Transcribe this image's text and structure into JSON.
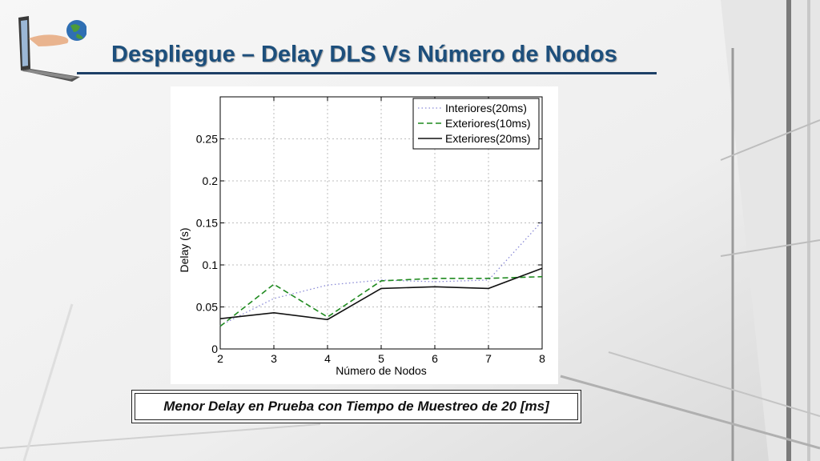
{
  "slide": {
    "title": "Despliegue – Delay DLS Vs Número de Nodos",
    "caption": "Menor Delay en Prueba con Tiempo de Muestreo de 20 [ms]"
  },
  "colors": {
    "title": "#1d4f7c",
    "rule": "#1d3f66",
    "interiores": "#8a8ad6",
    "exteriores10": "#1f8a1f",
    "exteriores20": "#111111"
  },
  "chart_data": {
    "type": "line",
    "title": "",
    "xlabel": "Número de Nodos",
    "ylabel": "Delay (s)",
    "x": [
      2,
      3,
      4,
      5,
      6,
      7,
      8
    ],
    "xlim": [
      2,
      8
    ],
    "ylim": [
      0,
      0.3
    ],
    "xticks": [
      "2",
      "3",
      "4",
      "5",
      "6",
      "7",
      "8"
    ],
    "yticks": [
      {
        "value": 0,
        "label": "0"
      },
      {
        "value": 0.05,
        "label": "0.05"
      },
      {
        "value": 0.1,
        "label": "0.1"
      },
      {
        "value": 0.15,
        "label": "0.15"
      },
      {
        "value": 0.2,
        "label": "0.2"
      },
      {
        "value": 0.25,
        "label": "0.25"
      }
    ],
    "grid": true,
    "legend_position": "top-right",
    "series": [
      {
        "name": "Interiores(20ms)",
        "style": "dotted",
        "values": [
          0.028,
          0.06,
          0.076,
          0.082,
          0.08,
          0.082,
          0.152
        ]
      },
      {
        "name": "Exteriores(10ms)",
        "style": "dashed",
        "values": [
          0.027,
          0.077,
          0.038,
          0.081,
          0.084,
          0.084,
          0.086
        ]
      },
      {
        "name": "Exteriores(20ms)",
        "style": "solid",
        "values": [
          0.036,
          0.043,
          0.035,
          0.072,
          0.074,
          0.072,
          0.096
        ]
      }
    ]
  }
}
